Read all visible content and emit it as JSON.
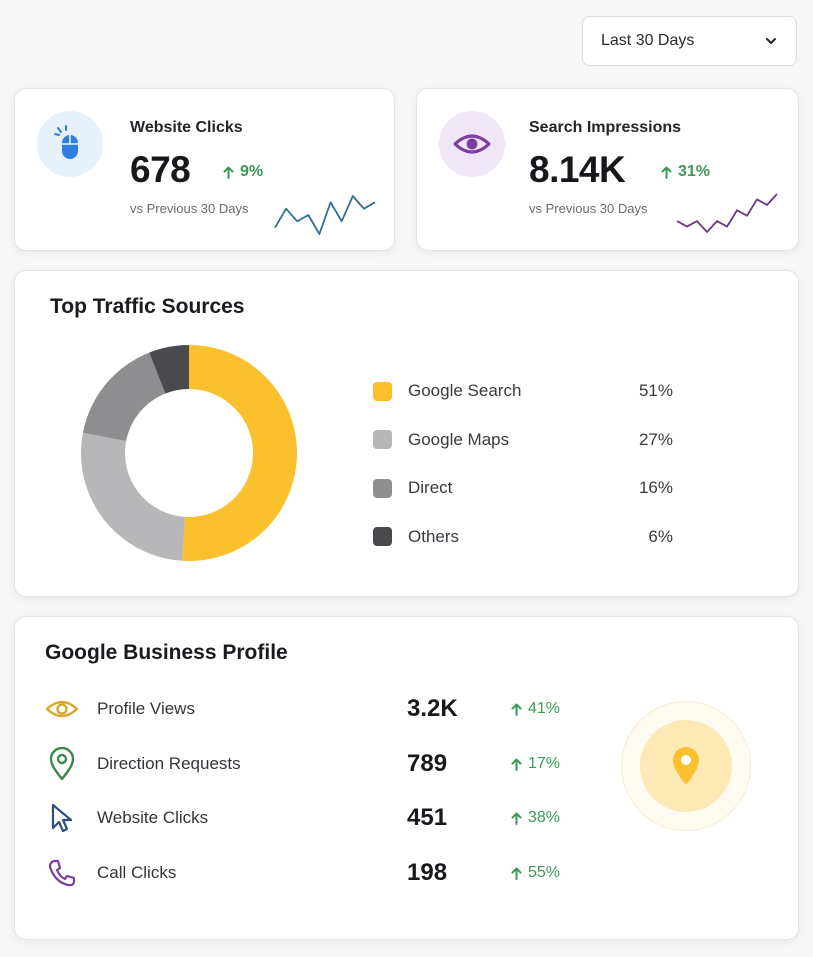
{
  "date_range": {
    "selected": "Last 30 Days"
  },
  "kpis": {
    "website_clicks": {
      "title": "Website Clicks",
      "value": "678",
      "delta": "9%",
      "comparison": "vs Previous 30 Days",
      "icon": "mouse-icon",
      "accent": "#2e7de0",
      "icon_bg": "#e6f1fc",
      "sparkline": [
        3,
        6,
        4,
        5,
        2,
        7,
        4,
        8,
        6,
        7
      ]
    },
    "search_impressions": {
      "title": "Search Impressions",
      "value": "8.14K",
      "delta": "31%",
      "comparison": "vs Previous 30 Days",
      "icon": "eye-icon",
      "accent": "#7a3f9e",
      "icon_bg": "#efe6f7",
      "sparkline": [
        3,
        2,
        3,
        1,
        3,
        2,
        5,
        4,
        7,
        6,
        8
      ]
    }
  },
  "traffic_sources": {
    "title": "Top Traffic Sources",
    "chart_data": {
      "type": "pie",
      "categories": [
        "Google Search",
        "Google Maps",
        "Direct",
        "Others"
      ],
      "values": [
        51,
        27,
        16,
        6
      ],
      "labels": [
        "51%",
        "27%",
        "16%",
        "6%"
      ],
      "colors": [
        "#fbc02d",
        "#b7b7b9",
        "#8e8e91",
        "#4a4a4e"
      ]
    }
  },
  "business_profile": {
    "title": "Google Business Profile",
    "rows": [
      {
        "label": "Profile Views",
        "value": "3.2K",
        "delta": "41%",
        "icon": "eye-icon",
        "color": "#d7a72a"
      },
      {
        "label": "Direction Requests",
        "value": "789",
        "delta": "17%",
        "icon": "map-pin-icon",
        "color": "#3b8a4a"
      },
      {
        "label": "Website Clicks",
        "value": "451",
        "delta": "38%",
        "icon": "cursor-icon",
        "color": "#2d4f86"
      },
      {
        "label": "Call Clicks",
        "value": "198",
        "delta": "55%",
        "icon": "phone-icon",
        "color": "#7a3f9e"
      }
    ],
    "badge_icon": "location-pin-icon"
  },
  "colors": {
    "positive": "#3d9a55",
    "brand_yellow": "#fbc02d"
  }
}
